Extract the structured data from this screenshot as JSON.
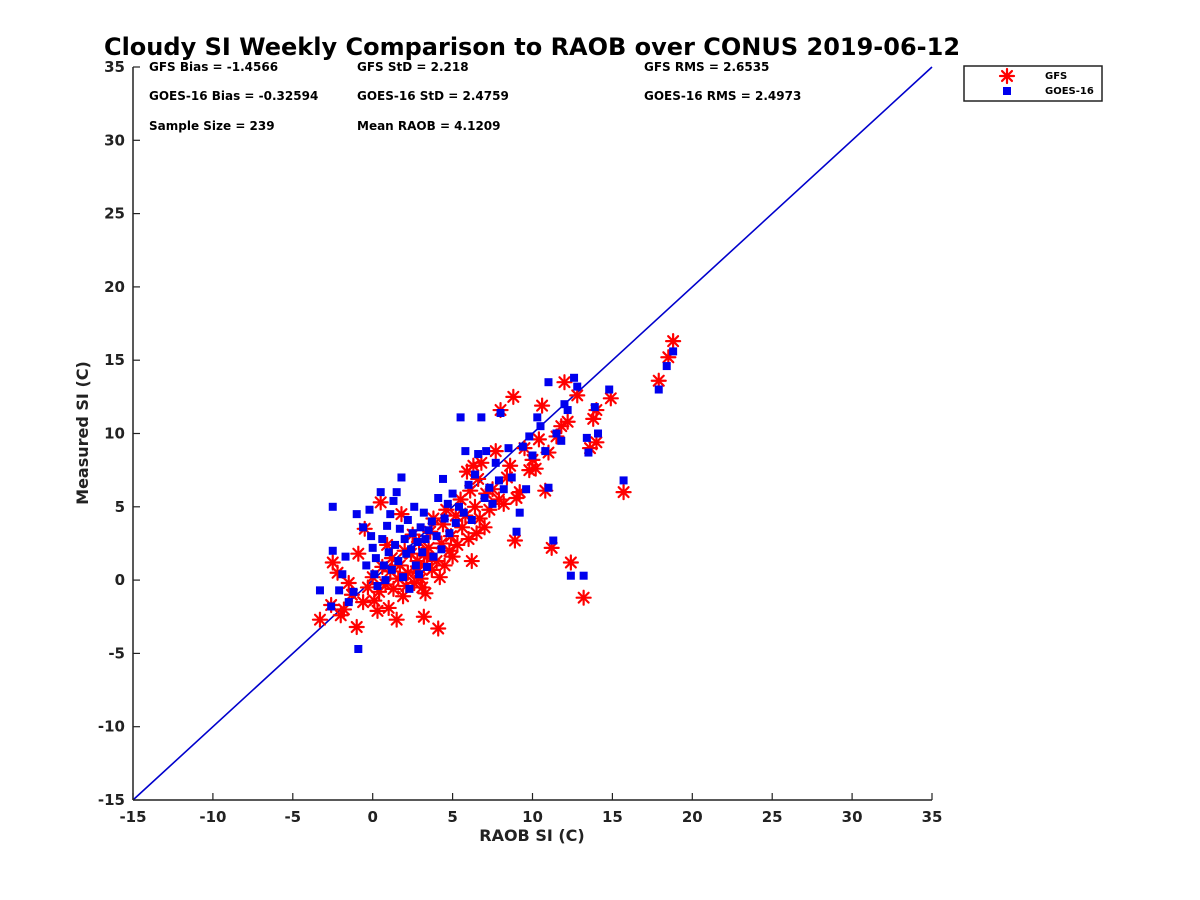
{
  "chart_data": {
    "type": "scatter",
    "title": "Cloudy SI Weekly Comparison to RAOB over CONUS 2019-06-12",
    "xlabel": "RAOB SI (C)",
    "ylabel": "Measured SI (C)",
    "xlim": [
      -15,
      35
    ],
    "ylim": [
      -15,
      35
    ],
    "xticks": [
      "-15",
      "-10",
      "-5",
      "0",
      "5",
      "10",
      "15",
      "20",
      "25",
      "30",
      "35"
    ],
    "yticks": [
      "-15",
      "-10",
      "-5",
      "0",
      "5",
      "10",
      "15",
      "20",
      "25",
      "30",
      "35"
    ],
    "grid": false,
    "legend_position": "outside top-right",
    "reference_line": {
      "name": "1:1",
      "color": "#0000cc",
      "from": [
        -15,
        -15
      ],
      "to": [
        35,
        35
      ]
    },
    "stats": [
      "GFS Bias = -1.4566",
      "GFS StD = 2.218",
      "GFS RMS = 2.6535",
      "GOES-16 Bias = -0.32594",
      "GOES-16 StD = 2.4759",
      "GOES-16 RMS = 2.4973",
      "Sample Size = 239",
      "Mean RAOB = 4.1209"
    ],
    "series": [
      {
        "name": "GFS",
        "marker": "asterisk",
        "color": "#ff0000",
        "points": [
          [
            -3.3,
            -2.7
          ],
          [
            -2.6,
            -1.7
          ],
          [
            -2.5,
            1.2
          ],
          [
            -2.2,
            0.5
          ],
          [
            -2.0,
            -2.4
          ],
          [
            -1.8,
            -2.0
          ],
          [
            -1.5,
            -0.2
          ],
          [
            -1.3,
            -1.0
          ],
          [
            -1.0,
            -3.2
          ],
          [
            -0.9,
            1.8
          ],
          [
            -0.6,
            -1.5
          ],
          [
            -0.5,
            3.5
          ],
          [
            -0.3,
            -0.5
          ],
          [
            0.0,
            0.2
          ],
          [
            0.1,
            -1.4
          ],
          [
            0.3,
            -2.1
          ],
          [
            0.4,
            -0.8
          ],
          [
            0.5,
            5.3
          ],
          [
            0.6,
            0.9
          ],
          [
            0.8,
            -0.3
          ],
          [
            0.9,
            2.4
          ],
          [
            1.0,
            -1.9
          ],
          [
            1.1,
            0.6
          ],
          [
            1.2,
            1.5
          ],
          [
            1.3,
            -0.6
          ],
          [
            1.5,
            -2.7
          ],
          [
            1.6,
            0.1
          ],
          [
            1.7,
            1.0
          ],
          [
            1.8,
            4.5
          ],
          [
            1.9,
            -1.1
          ],
          [
            2.0,
            2.0
          ],
          [
            2.1,
            -0.4
          ],
          [
            2.2,
            0.5
          ],
          [
            2.4,
            1.8
          ],
          [
            2.5,
            3.1
          ],
          [
            2.6,
            -0.2
          ],
          [
            2.7,
            0.6
          ],
          [
            2.8,
            1.3
          ],
          [
            2.9,
            2.6
          ],
          [
            3.0,
            0.1
          ],
          [
            3.1,
            -0.5
          ],
          [
            3.2,
            1.0
          ],
          [
            3.2,
            -2.5
          ],
          [
            3.3,
            -0.9
          ],
          [
            3.4,
            1.6
          ],
          [
            3.5,
            2.2
          ],
          [
            3.6,
            3.3
          ],
          [
            3.7,
            0.7
          ],
          [
            3.8,
            4.2
          ],
          [
            4.0,
            1.3
          ],
          [
            4.1,
            -3.3
          ],
          [
            4.2,
            0.2
          ],
          [
            4.3,
            2.5
          ],
          [
            4.4,
            3.8
          ],
          [
            4.5,
            1.0
          ],
          [
            4.6,
            4.8
          ],
          [
            4.8,
            2.0
          ],
          [
            4.9,
            3.0
          ],
          [
            5.0,
            1.6
          ],
          [
            5.2,
            4.4
          ],
          [
            5.3,
            2.4
          ],
          [
            5.5,
            5.5
          ],
          [
            5.6,
            3.6
          ],
          [
            5.8,
            4.4
          ],
          [
            5.9,
            7.4
          ],
          [
            6.0,
            2.8
          ],
          [
            6.1,
            6.1
          ],
          [
            6.2,
            1.3
          ],
          [
            6.3,
            7.8
          ],
          [
            6.4,
            5.0
          ],
          [
            6.5,
            3.2
          ],
          [
            6.6,
            6.9
          ],
          [
            6.7,
            4.2
          ],
          [
            6.8,
            8.0
          ],
          [
            7.0,
            3.6
          ],
          [
            7.1,
            5.9
          ],
          [
            7.3,
            4.8
          ],
          [
            7.5,
            6.2
          ],
          [
            7.7,
            8.8
          ],
          [
            7.9,
            5.5
          ],
          [
            8.0,
            11.6
          ],
          [
            8.2,
            5.2
          ],
          [
            8.4,
            7.0
          ],
          [
            8.6,
            7.8
          ],
          [
            8.8,
            12.5
          ],
          [
            8.9,
            2.7
          ],
          [
            9.0,
            5.6
          ],
          [
            9.2,
            6.0
          ],
          [
            9.5,
            9.0
          ],
          [
            9.8,
            7.5
          ],
          [
            10.0,
            8.2
          ],
          [
            10.2,
            7.6
          ],
          [
            10.4,
            9.6
          ],
          [
            10.6,
            11.9
          ],
          [
            10.8,
            6.1
          ],
          [
            11.0,
            8.7
          ],
          [
            11.2,
            2.2
          ],
          [
            11.5,
            9.8
          ],
          [
            11.8,
            10.5
          ],
          [
            12.0,
            13.5
          ],
          [
            12.2,
            10.8
          ],
          [
            12.4,
            1.2
          ],
          [
            12.8,
            12.6
          ],
          [
            13.2,
            -1.2
          ],
          [
            13.6,
            9.0
          ],
          [
            13.8,
            11.0
          ],
          [
            14.0,
            9.4
          ],
          [
            14.0,
            11.6
          ],
          [
            14.9,
            12.4
          ],
          [
            15.7,
            6.0
          ],
          [
            17.9,
            13.6
          ],
          [
            18.5,
            15.2
          ],
          [
            18.8,
            16.3
          ]
        ]
      },
      {
        "name": "GOES-16",
        "marker": "square",
        "color": "#0000ee",
        "points": [
          [
            -3.3,
            -0.7
          ],
          [
            -2.6,
            -1.8
          ],
          [
            -2.5,
            2.0
          ],
          [
            -2.5,
            5.0
          ],
          [
            -2.1,
            -0.7
          ],
          [
            -1.9,
            0.4
          ],
          [
            -1.7,
            1.6
          ],
          [
            -1.5,
            -1.5
          ],
          [
            -1.2,
            -0.8
          ],
          [
            -1.0,
            4.5
          ],
          [
            -0.9,
            -4.7
          ],
          [
            -0.6,
            3.6
          ],
          [
            -0.4,
            1.0
          ],
          [
            -0.2,
            4.8
          ],
          [
            -0.1,
            3.0
          ],
          [
            0.0,
            2.2
          ],
          [
            0.1,
            0.4
          ],
          [
            0.2,
            1.5
          ],
          [
            0.3,
            -0.4
          ],
          [
            0.5,
            6.0
          ],
          [
            0.6,
            2.8
          ],
          [
            0.7,
            1.0
          ],
          [
            0.8,
            0.0
          ],
          [
            0.9,
            3.7
          ],
          [
            1.0,
            1.9
          ],
          [
            1.1,
            4.5
          ],
          [
            1.2,
            0.7
          ],
          [
            1.3,
            5.4
          ],
          [
            1.4,
            2.4
          ],
          [
            1.5,
            6.0
          ],
          [
            1.6,
            1.3
          ],
          [
            1.7,
            3.5
          ],
          [
            1.8,
            7.0
          ],
          [
            1.9,
            0.2
          ],
          [
            2.0,
            2.8
          ],
          [
            2.1,
            1.8
          ],
          [
            2.2,
            4.1
          ],
          [
            2.3,
            -0.6
          ],
          [
            2.4,
            2.1
          ],
          [
            2.5,
            3.2
          ],
          [
            2.6,
            5.0
          ],
          [
            2.7,
            1.0
          ],
          [
            2.8,
            2.6
          ],
          [
            2.9,
            0.4
          ],
          [
            3.0,
            3.6
          ],
          [
            3.1,
            1.9
          ],
          [
            3.2,
            4.6
          ],
          [
            3.3,
            2.8
          ],
          [
            3.4,
            0.9
          ],
          [
            3.5,
            3.4
          ],
          [
            3.7,
            4.0
          ],
          [
            3.8,
            1.6
          ],
          [
            4.0,
            3.0
          ],
          [
            4.1,
            5.6
          ],
          [
            4.3,
            2.1
          ],
          [
            4.4,
            6.9
          ],
          [
            4.5,
            4.2
          ],
          [
            4.7,
            5.2
          ],
          [
            4.8,
            3.2
          ],
          [
            5.0,
            5.9
          ],
          [
            5.2,
            3.9
          ],
          [
            5.4,
            5.0
          ],
          [
            5.5,
            11.1
          ],
          [
            5.7,
            4.6
          ],
          [
            5.8,
            8.8
          ],
          [
            6.0,
            6.5
          ],
          [
            6.2,
            4.1
          ],
          [
            6.4,
            7.2
          ],
          [
            6.6,
            8.6
          ],
          [
            6.8,
            11.1
          ],
          [
            7.0,
            5.6
          ],
          [
            7.1,
            8.8
          ],
          [
            7.3,
            6.3
          ],
          [
            7.5,
            5.2
          ],
          [
            7.7,
            8.0
          ],
          [
            7.9,
            6.8
          ],
          [
            8.0,
            11.4
          ],
          [
            8.2,
            6.2
          ],
          [
            8.5,
            9.0
          ],
          [
            8.7,
            7.0
          ],
          [
            9.0,
            3.3
          ],
          [
            9.2,
            4.6
          ],
          [
            9.4,
            9.1
          ],
          [
            9.6,
            6.2
          ],
          [
            9.8,
            9.8
          ],
          [
            10.0,
            8.5
          ],
          [
            10.3,
            11.1
          ],
          [
            10.5,
            10.5
          ],
          [
            10.8,
            8.8
          ],
          [
            11.0,
            13.5
          ],
          [
            11.0,
            6.3
          ],
          [
            11.3,
            2.7
          ],
          [
            11.5,
            10.0
          ],
          [
            11.8,
            9.5
          ],
          [
            12.0,
            12.0
          ],
          [
            12.2,
            11.6
          ],
          [
            12.4,
            0.3
          ],
          [
            12.6,
            13.8
          ],
          [
            12.8,
            13.2
          ],
          [
            13.2,
            0.3
          ],
          [
            13.4,
            9.7
          ],
          [
            13.5,
            8.7
          ],
          [
            13.9,
            11.8
          ],
          [
            14.1,
            10.0
          ],
          [
            14.8,
            13.0
          ],
          [
            15.7,
            6.8
          ],
          [
            17.9,
            13.0
          ],
          [
            18.4,
            14.6
          ],
          [
            18.8,
            15.6
          ]
        ]
      }
    ]
  }
}
